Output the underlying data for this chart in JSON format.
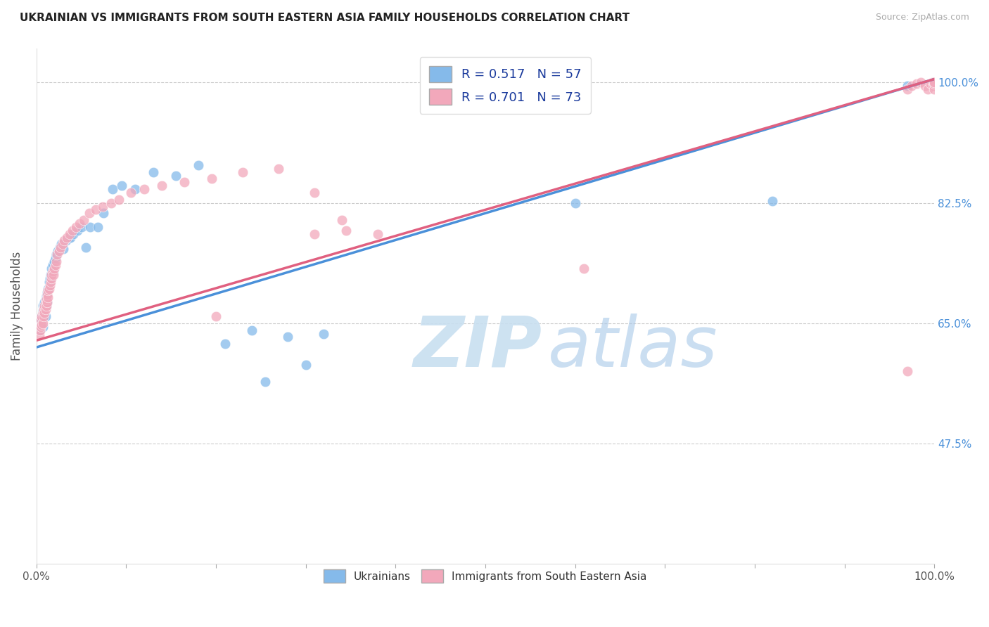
{
  "title": "UKRAINIAN VS IMMIGRANTS FROM SOUTH EASTERN ASIA FAMILY HOUSEHOLDS CORRELATION CHART",
  "source": "Source: ZipAtlas.com",
  "ylabel": "Family Households",
  "x_range": [
    0.0,
    1.0
  ],
  "y_range": [
    0.3,
    1.05
  ],
  "blue_R": 0.517,
  "blue_N": 57,
  "pink_R": 0.701,
  "pink_N": 73,
  "blue_line_x0": 0.0,
  "blue_line_y0": 0.615,
  "blue_line_x1": 1.0,
  "blue_line_y1": 1.005,
  "pink_line_x0": 0.0,
  "pink_line_y0": 0.625,
  "pink_line_x1": 1.0,
  "pink_line_y1": 1.005,
  "blue_color": "#85BAEA",
  "pink_color": "#F2A8BB",
  "blue_line_color": "#4A90D9",
  "pink_line_color": "#E06080",
  "ytick_vals": [
    0.475,
    0.65,
    0.825,
    1.0
  ],
  "ytick_labels": [
    "47.5%",
    "65.0%",
    "82.5%",
    "100.0%"
  ],
  "blue_points_x": [
    0.003,
    0.004,
    0.005,
    0.006,
    0.006,
    0.007,
    0.007,
    0.007,
    0.008,
    0.008,
    0.009,
    0.009,
    0.01,
    0.01,
    0.011,
    0.011,
    0.012,
    0.012,
    0.013,
    0.014,
    0.015,
    0.016,
    0.017,
    0.018,
    0.019,
    0.02,
    0.021,
    0.022,
    0.024,
    0.026,
    0.028,
    0.03,
    0.033,
    0.036,
    0.038,
    0.041,
    0.046,
    0.05,
    0.055,
    0.06,
    0.068,
    0.075,
    0.085,
    0.095,
    0.11,
    0.13,
    0.155,
    0.18,
    0.21,
    0.24,
    0.28,
    0.32,
    0.3,
    0.255,
    0.6,
    0.82,
    0.97
  ],
  "blue_points_y": [
    0.64,
    0.648,
    0.655,
    0.66,
    0.65,
    0.675,
    0.668,
    0.645,
    0.672,
    0.66,
    0.68,
    0.67,
    0.685,
    0.66,
    0.69,
    0.675,
    0.695,
    0.68,
    0.7,
    0.71,
    0.715,
    0.72,
    0.73,
    0.735,
    0.725,
    0.74,
    0.745,
    0.75,
    0.755,
    0.76,
    0.765,
    0.758,
    0.77,
    0.775,
    0.775,
    0.78,
    0.785,
    0.79,
    0.76,
    0.79,
    0.79,
    0.81,
    0.845,
    0.85,
    0.845,
    0.87,
    0.865,
    0.88,
    0.62,
    0.64,
    0.63,
    0.635,
    0.59,
    0.565,
    0.825,
    0.828,
    0.995
  ],
  "pink_points_x": [
    0.003,
    0.004,
    0.005,
    0.005,
    0.006,
    0.006,
    0.007,
    0.007,
    0.008,
    0.008,
    0.009,
    0.009,
    0.01,
    0.01,
    0.011,
    0.011,
    0.012,
    0.012,
    0.013,
    0.013,
    0.014,
    0.015,
    0.016,
    0.017,
    0.017,
    0.018,
    0.019,
    0.02,
    0.021,
    0.022,
    0.023,
    0.025,
    0.027,
    0.029,
    0.031,
    0.034,
    0.037,
    0.04,
    0.044,
    0.048,
    0.053,
    0.059,
    0.066,
    0.074,
    0.083,
    0.092,
    0.105,
    0.12,
    0.14,
    0.165,
    0.195,
    0.23,
    0.27,
    0.31,
    0.31,
    0.34,
    0.345,
    0.38,
    0.2,
    0.61,
    0.97,
    0.97,
    0.975,
    0.98,
    0.985,
    0.99,
    0.993,
    0.996,
    0.998,
    0.999,
    1.0,
    1.0,
    1.0
  ],
  "pink_points_y": [
    0.632,
    0.64,
    0.645,
    0.655,
    0.648,
    0.66,
    0.65,
    0.665,
    0.66,
    0.67,
    0.665,
    0.675,
    0.67,
    0.68,
    0.675,
    0.685,
    0.68,
    0.692,
    0.688,
    0.698,
    0.7,
    0.705,
    0.71,
    0.715,
    0.72,
    0.725,
    0.72,
    0.73,
    0.735,
    0.74,
    0.75,
    0.755,
    0.76,
    0.765,
    0.77,
    0.775,
    0.78,
    0.785,
    0.79,
    0.795,
    0.8,
    0.81,
    0.815,
    0.82,
    0.825,
    0.83,
    0.84,
    0.845,
    0.85,
    0.855,
    0.86,
    0.87,
    0.875,
    0.84,
    0.78,
    0.8,
    0.785,
    0.78,
    0.66,
    0.73,
    0.58,
    0.99,
    0.995,
    0.998,
    1.0,
    0.995,
    0.99,
    0.998,
    1.0,
    0.995,
    0.99,
    0.998,
    1.0
  ]
}
